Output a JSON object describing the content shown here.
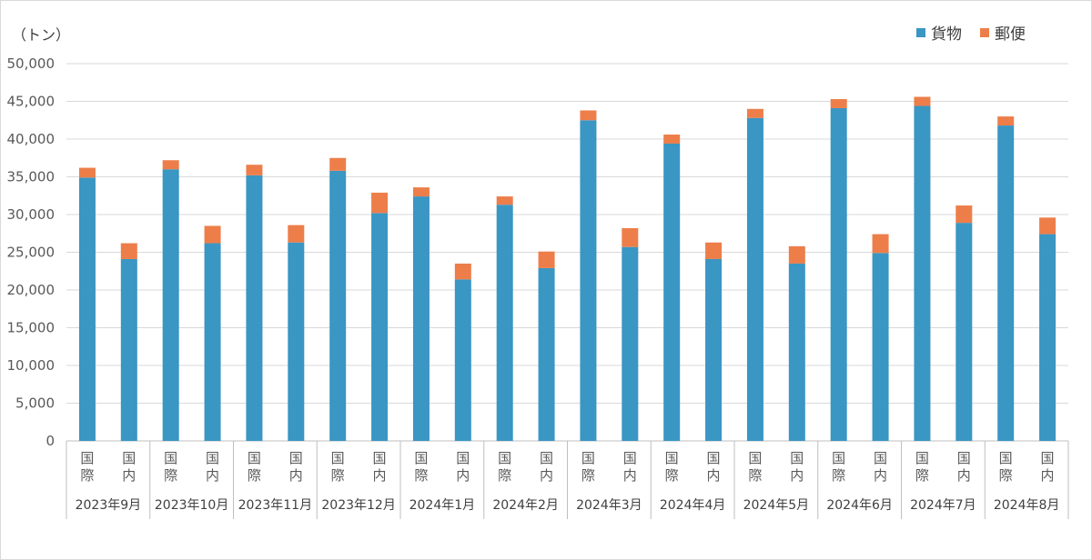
{
  "chart_data": {
    "type": "bar",
    "stacked": true,
    "unit_label": "（トン）",
    "ylim": [
      0,
      50000
    ],
    "yticks": [
      "0",
      "5,000",
      "10,000",
      "15,000",
      "20,000",
      "25,000",
      "30,000",
      "35,000",
      "40,000",
      "45,000",
      "50,000"
    ],
    "grid": true,
    "legend_position": "top-right",
    "groups": [
      "2023年9月",
      "2023年10月",
      "2023年11月",
      "2023年12月",
      "2024年1月",
      "2024年2月",
      "2024年3月",
      "2024年4月",
      "2024年5月",
      "2024年6月",
      "2024年7月",
      "2024年8月"
    ],
    "subcategories": [
      "国際",
      "国内"
    ],
    "series": [
      {
        "name": "貨物",
        "color": "#3A96C3",
        "values": [
          34900,
          24100,
          36000,
          26200,
          35200,
          26300,
          35800,
          30200,
          32400,
          21400,
          31300,
          22900,
          42500,
          25700,
          39400,
          24100,
          42800,
          23500,
          44100,
          24900,
          44400,
          28900,
          41800,
          27400
        ]
      },
      {
        "name": "郵便",
        "color": "#ED7E4A",
        "values": [
          1300,
          2100,
          1200,
          2300,
          1400,
          2300,
          1700,
          2700,
          1200,
          2100,
          1100,
          2200,
          1300,
          2500,
          1200,
          2200,
          1200,
          2300,
          1200,
          2500,
          1200,
          2300,
          1200,
          2200
        ]
      }
    ]
  }
}
